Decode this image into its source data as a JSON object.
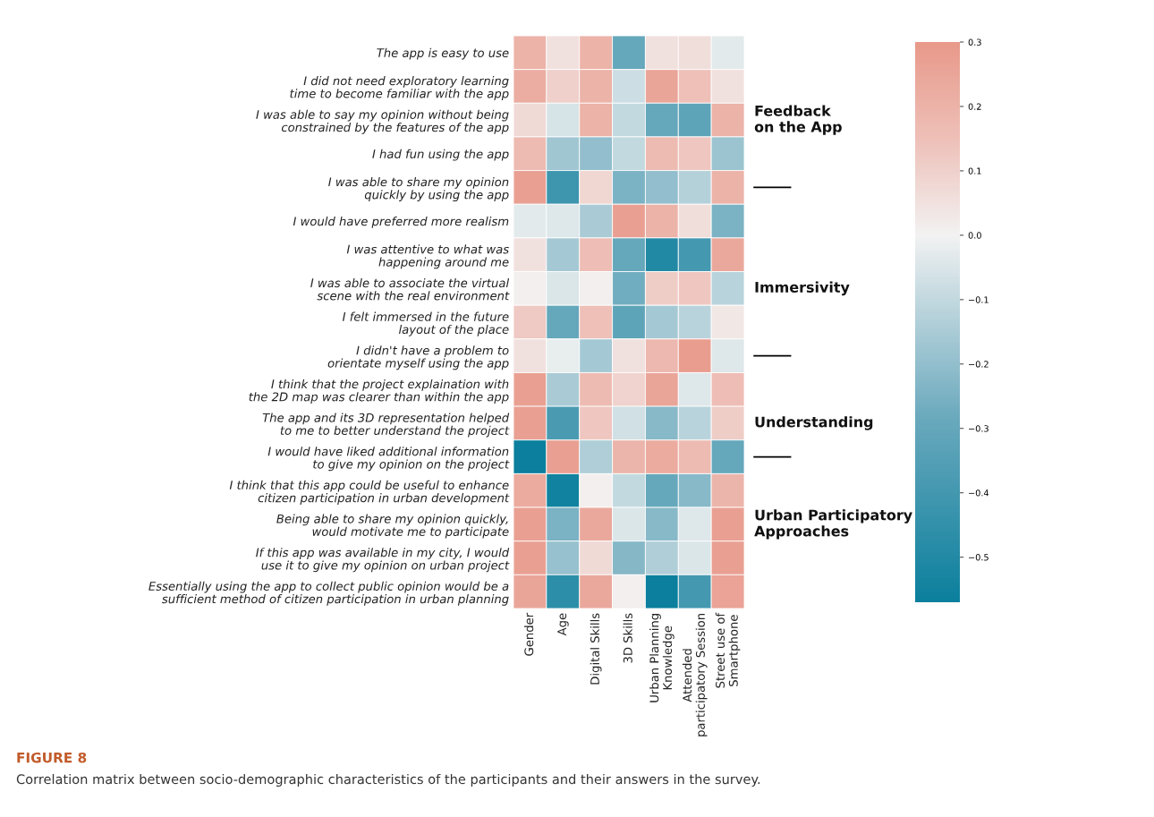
{
  "chart_data": {
    "type": "heatmap",
    "title": "FIGURE 8",
    "annotations": [
      "Correlation matrix between socio-demographic characteristics of the participants and their answers in the survey."
    ],
    "categories": [
      "Gender",
      "Age",
      "Digital Skills",
      "3D Skills",
      "Urban Planning\nKnowledge",
      "Attended\nparticipatory Session",
      "Street use of\nSmartphone"
    ],
    "y_categories": [
      "The app is easy to use",
      "I did not need exploratory learning\ntime to become familiar with the app",
      "I was able to say my opinion without being\nconstrained by the features of the app",
      "I had fun using the app",
      "I was able to share my opinion\nquickly by using the app",
      "I would have preferred more realism",
      "I was attentive to what was\nhappening around me",
      "I was able to associate the virtual\nscene with the real environment",
      "I felt immersed in the future\nlayout of the place",
      "I didn't have a problem to\norientate myself using the app",
      "I think that the project explaination with\nthe 2D map was clearer than within the app",
      "The app and its 3D representation helped\nto me to better understand the project",
      "I would have liked additional information\nto give my opinion on the project",
      "I think that this app could be useful to enhance\ncitizen participation in urban development",
      "Being able to share my opinion quickly,\nwould motivate me to participate",
      "If this app was available in my city, I would\nuse it to give my opinion on urban project",
      "Essentially using the app to collect public opinion would be a\nsufficient method of citizen participation in urban planning"
    ],
    "y2_categories": [
      null,
      null,
      "Feedback\non the App",
      null,
      null,
      null,
      null,
      "Immersivity",
      null,
      null,
      null,
      "Understanding",
      null,
      null,
      "Urban Participatory\nApproaches",
      null,
      null
    ],
    "cells": [
      [
        0.2,
        0.05,
        0.2,
        -0.3,
        0.05,
        0.06,
        -0.03
      ],
      [
        0.22,
        0.1,
        0.2,
        -0.08,
        0.25,
        0.15,
        0.05
      ],
      [
        0.07,
        -0.06,
        0.2,
        -0.1,
        -0.3,
        -0.32,
        0.2
      ],
      [
        0.17,
        -0.17,
        -0.2,
        -0.1,
        0.17,
        0.13,
        -0.18
      ],
      [
        0.27,
        -0.42,
        0.08,
        -0.25,
        -0.2,
        -0.13,
        0.2
      ],
      [
        -0.03,
        -0.04,
        -0.15,
        0.27,
        0.2,
        0.06,
        -0.25
      ],
      [
        0.05,
        -0.16,
        0.16,
        -0.3,
        -0.5,
        -0.4,
        0.24
      ],
      [
        0.01,
        -0.05,
        0.01,
        -0.27,
        0.11,
        0.13,
        -0.12
      ],
      [
        0.12,
        -0.3,
        0.15,
        -0.32,
        -0.16,
        -0.12,
        0.03
      ],
      [
        0.05,
        -0.02,
        -0.16,
        0.05,
        0.18,
        0.28,
        -0.04
      ],
      [
        0.27,
        -0.15,
        0.17,
        0.09,
        0.25,
        -0.04,
        0.16
      ],
      [
        0.27,
        -0.38,
        0.13,
        -0.07,
        -0.22,
        -0.12,
        0.11
      ],
      [
        -0.57,
        0.27,
        -0.14,
        0.19,
        0.23,
        0.17,
        -0.3
      ],
      [
        0.23,
        -0.55,
        0.01,
        -0.1,
        -0.3,
        -0.22,
        0.19
      ],
      [
        0.27,
        -0.25,
        0.24,
        -0.05,
        -0.22,
        -0.04,
        0.27
      ],
      [
        0.27,
        -0.19,
        0.07,
        -0.23,
        -0.14,
        -0.05,
        0.27
      ],
      [
        0.25,
        -0.47,
        0.24,
        0.01,
        -0.57,
        -0.4,
        0.26
      ]
    ],
    "clim": [
      -0.57,
      0.3
    ],
    "cticks": [
      {
        "value": -0.5,
        "label": "−0.5"
      },
      {
        "value": -0.4,
        "label": "−0.4"
      },
      {
        "value": -0.3,
        "label": "−0.3"
      },
      {
        "value": -0.2,
        "label": "−0.2"
      },
      {
        "value": -0.1,
        "label": "−0.1"
      },
      {
        "value": 0.0,
        "label": "0.0"
      },
      {
        "value": 0.1,
        "label": "0.1"
      },
      {
        "value": 0.2,
        "label": "0.2"
      },
      {
        "value": 0.3,
        "label": "0.3"
      }
    ]
  }
}
